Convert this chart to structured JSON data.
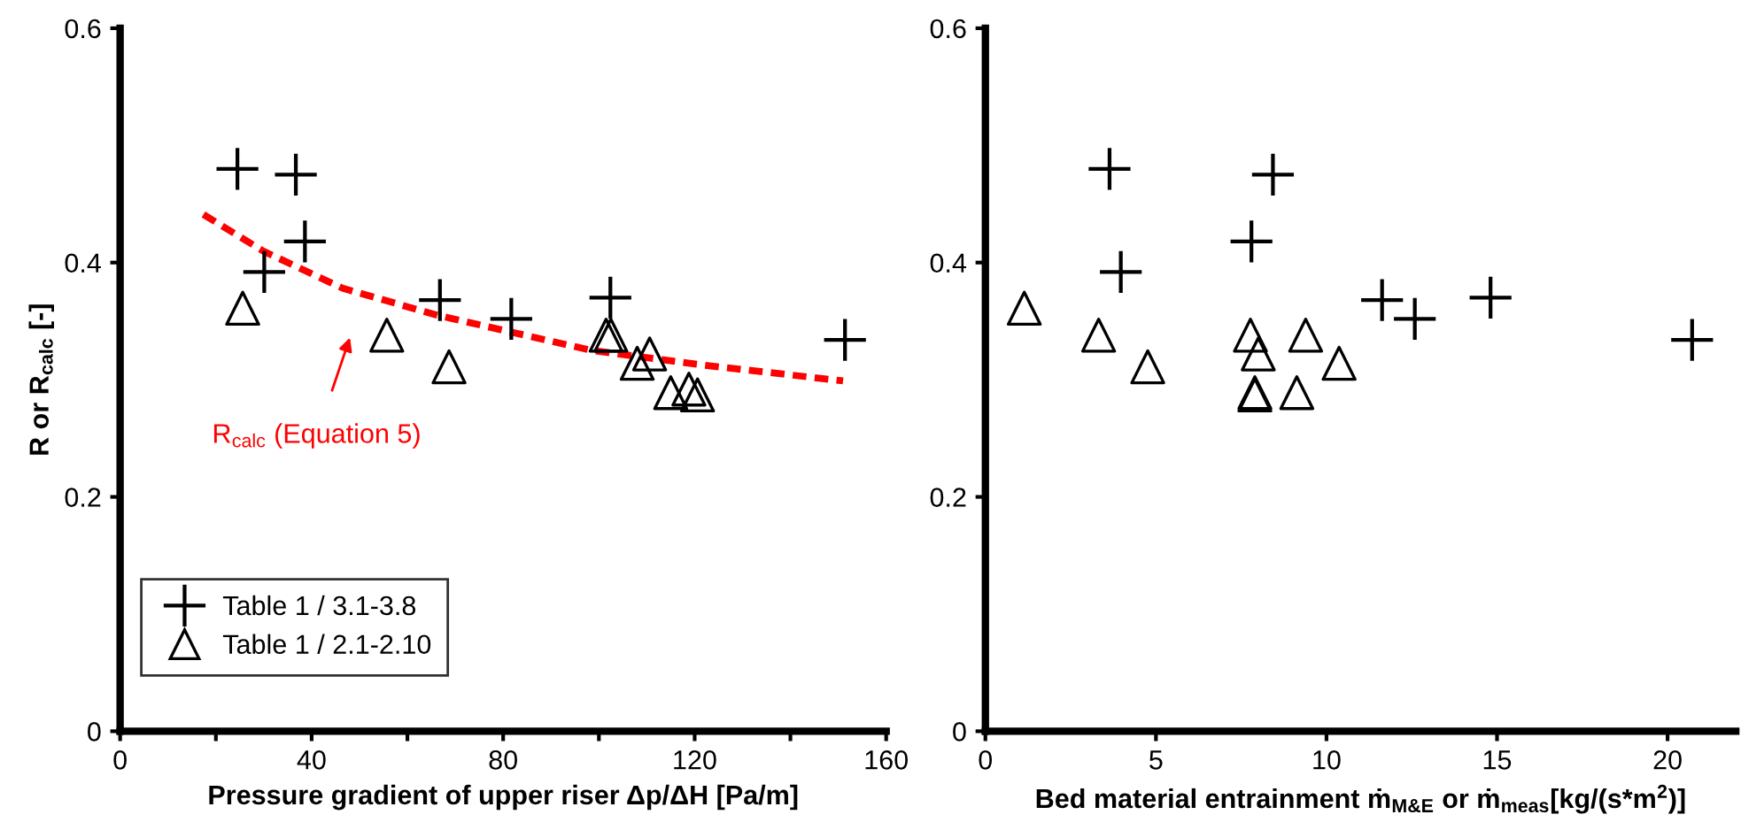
{
  "chart_data": [
    {
      "type": "scatter",
      "xlabel": "Pressure gradient of upper riser Δp/ΔH [Pa/m]",
      "ylabel": "R or R$_{calc}$ [-]",
      "xlim": [
        0,
        160
      ],
      "ylim": [
        0,
        0.6
      ],
      "xticks": [
        0,
        {
          "value": 20,
          "label": null
        },
        40,
        {
          "value": 60,
          "label": null
        },
        80,
        {
          "value": 100,
          "label": null
        },
        120,
        {
          "value": 140,
          "label": null
        },
        160
      ],
      "yticks": [
        0,
        0.2,
        0.4,
        0.6
      ],
      "legend": "bottom left",
      "grid": false,
      "series": [
        {
          "name": "Table 1 / 3.1-3.8",
          "color": "#000000",
          "marker": "cross",
          "x": [
            24.5,
            36.7,
            38.6,
            30.1,
            66.8,
            81.7,
            102.4,
            151.4
          ],
          "values": [
            0.48,
            0.475,
            0.418,
            0.392,
            0.368,
            0.352,
            0.37,
            0.334
          ]
        },
        {
          "name": "Table 1 / 2.1-2.10",
          "color": "#000000",
          "marker": "triangle",
          "x": [
            25.6,
            55.7,
            68.7,
            101.5,
            102.5,
            110.6,
            108,
            115,
            118.8,
            120.6
          ],
          "values": [
            0.361,
            0.338,
            0.311,
            0.338,
            0.338,
            0.322,
            0.314,
            0.289,
            0.292,
            0.287
          ]
        },
        {
          "type": "line",
          "color": "#ff0000",
          "line_style": "dashed",
          "marker": "none",
          "x": [
            17.4,
            29.8,
            46.5,
            66.3,
            98.5,
            120.8,
            151
          ],
          "values": [
            0.441,
            0.41,
            0.378,
            0.355,
            0.325,
            0.313,
            0.299
          ]
        }
      ],
      "annotations": [
        "R$_{calc}$ (Equation 5)"
      ]
    },
    {
      "type": "scatter",
      "xlabel": "Bed material entrainment ṁ$_{M&E}$ or ṁ$_{meas}$[kg/(s*m$^{2}$)]",
      "xlim": [
        0,
        22
      ],
      "ylim": [
        0,
        0.6
      ],
      "xticks": [
        0,
        5,
        10,
        15,
        20
      ],
      "yticks": [
        0,
        0.2,
        0.4,
        0.6
      ],
      "grid": false,
      "series": [
        {
          "color": "#000000",
          "marker": "cross",
          "x": [
            3.64,
            8.43,
            7.8,
            3.97,
            11.63,
            12.59,
            14.81,
            20.72
          ],
          "values": [
            0.48,
            0.475,
            0.418,
            0.392,
            0.368,
            0.352,
            0.37,
            0.334
          ]
        },
        {
          "color": "#000000",
          "marker": "triangle",
          "x": [
            1.14,
            3.32,
            4.76,
            7.77,
            8.0,
            9.39,
            10.37,
            7.9,
            7.9,
            9.13
          ],
          "values": [
            0.361,
            0.338,
            0.311,
            0.338,
            0.322,
            0.338,
            0.314,
            0.289,
            0.287,
            0.289
          ]
        }
      ]
    }
  ]
}
